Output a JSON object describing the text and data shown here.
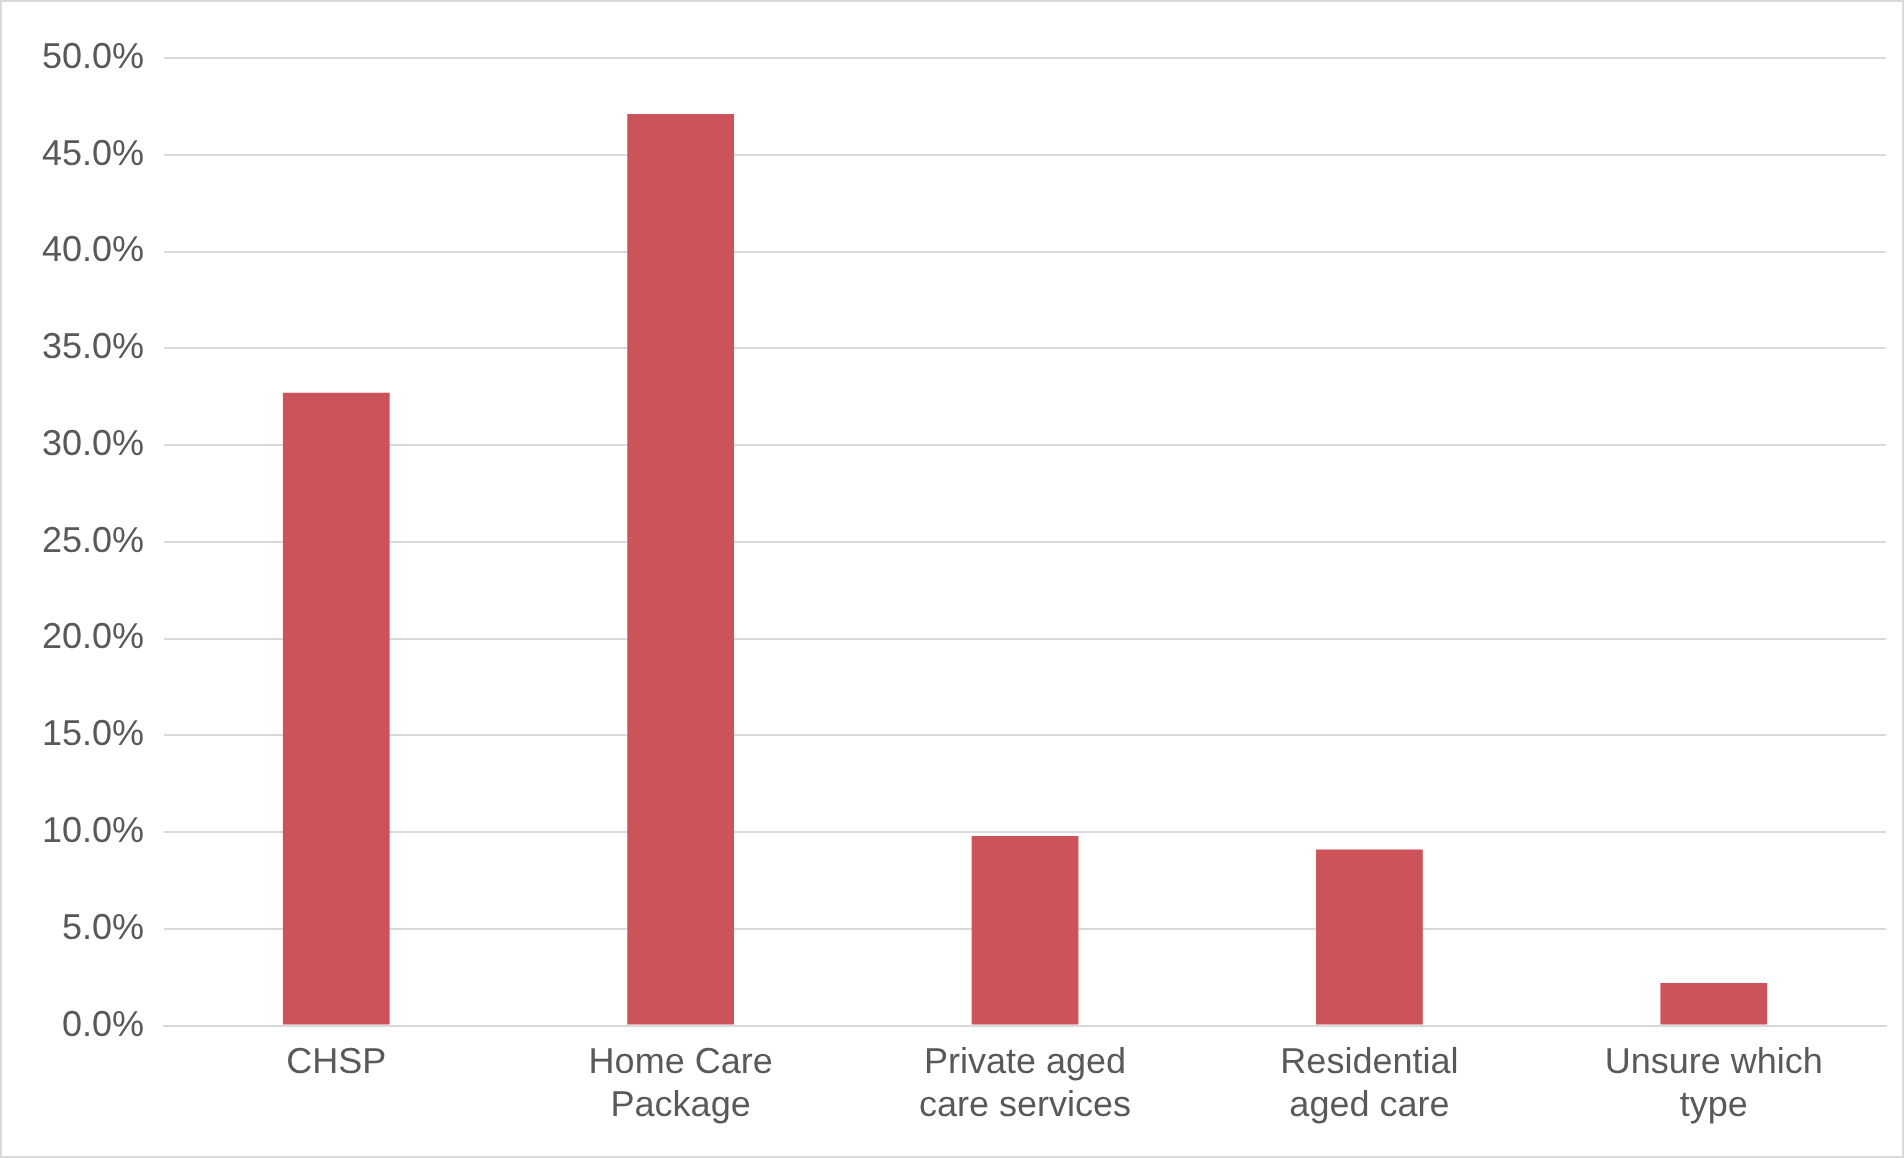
{
  "chart_data": {
    "type": "bar",
    "categories": [
      "CHSP",
      "Home Care Package",
      "Private aged care services",
      "Residential aged care",
      "Unsure which type"
    ],
    "values": [
      32.7,
      47.1,
      9.8,
      9.1,
      2.2
    ],
    "color": "#cd535a",
    "ylim": [
      0,
      50
    ],
    "yticks": [
      {
        "value": 0,
        "label": "0.0%"
      },
      {
        "value": 5,
        "label": "5.0%"
      },
      {
        "value": 10,
        "label": "10.0%"
      },
      {
        "value": 15,
        "label": "15.0%"
      },
      {
        "value": 20,
        "label": "20.0%"
      },
      {
        "value": 25,
        "label": "25.0%"
      },
      {
        "value": 30,
        "label": "30.0%"
      },
      {
        "value": 35,
        "label": "35.0%"
      },
      {
        "value": 40,
        "label": "40.0%"
      },
      {
        "value": 45,
        "label": "45.0%"
      },
      {
        "value": 50,
        "label": "50.0%"
      }
    ],
    "grid": "y",
    "legend": false
  }
}
